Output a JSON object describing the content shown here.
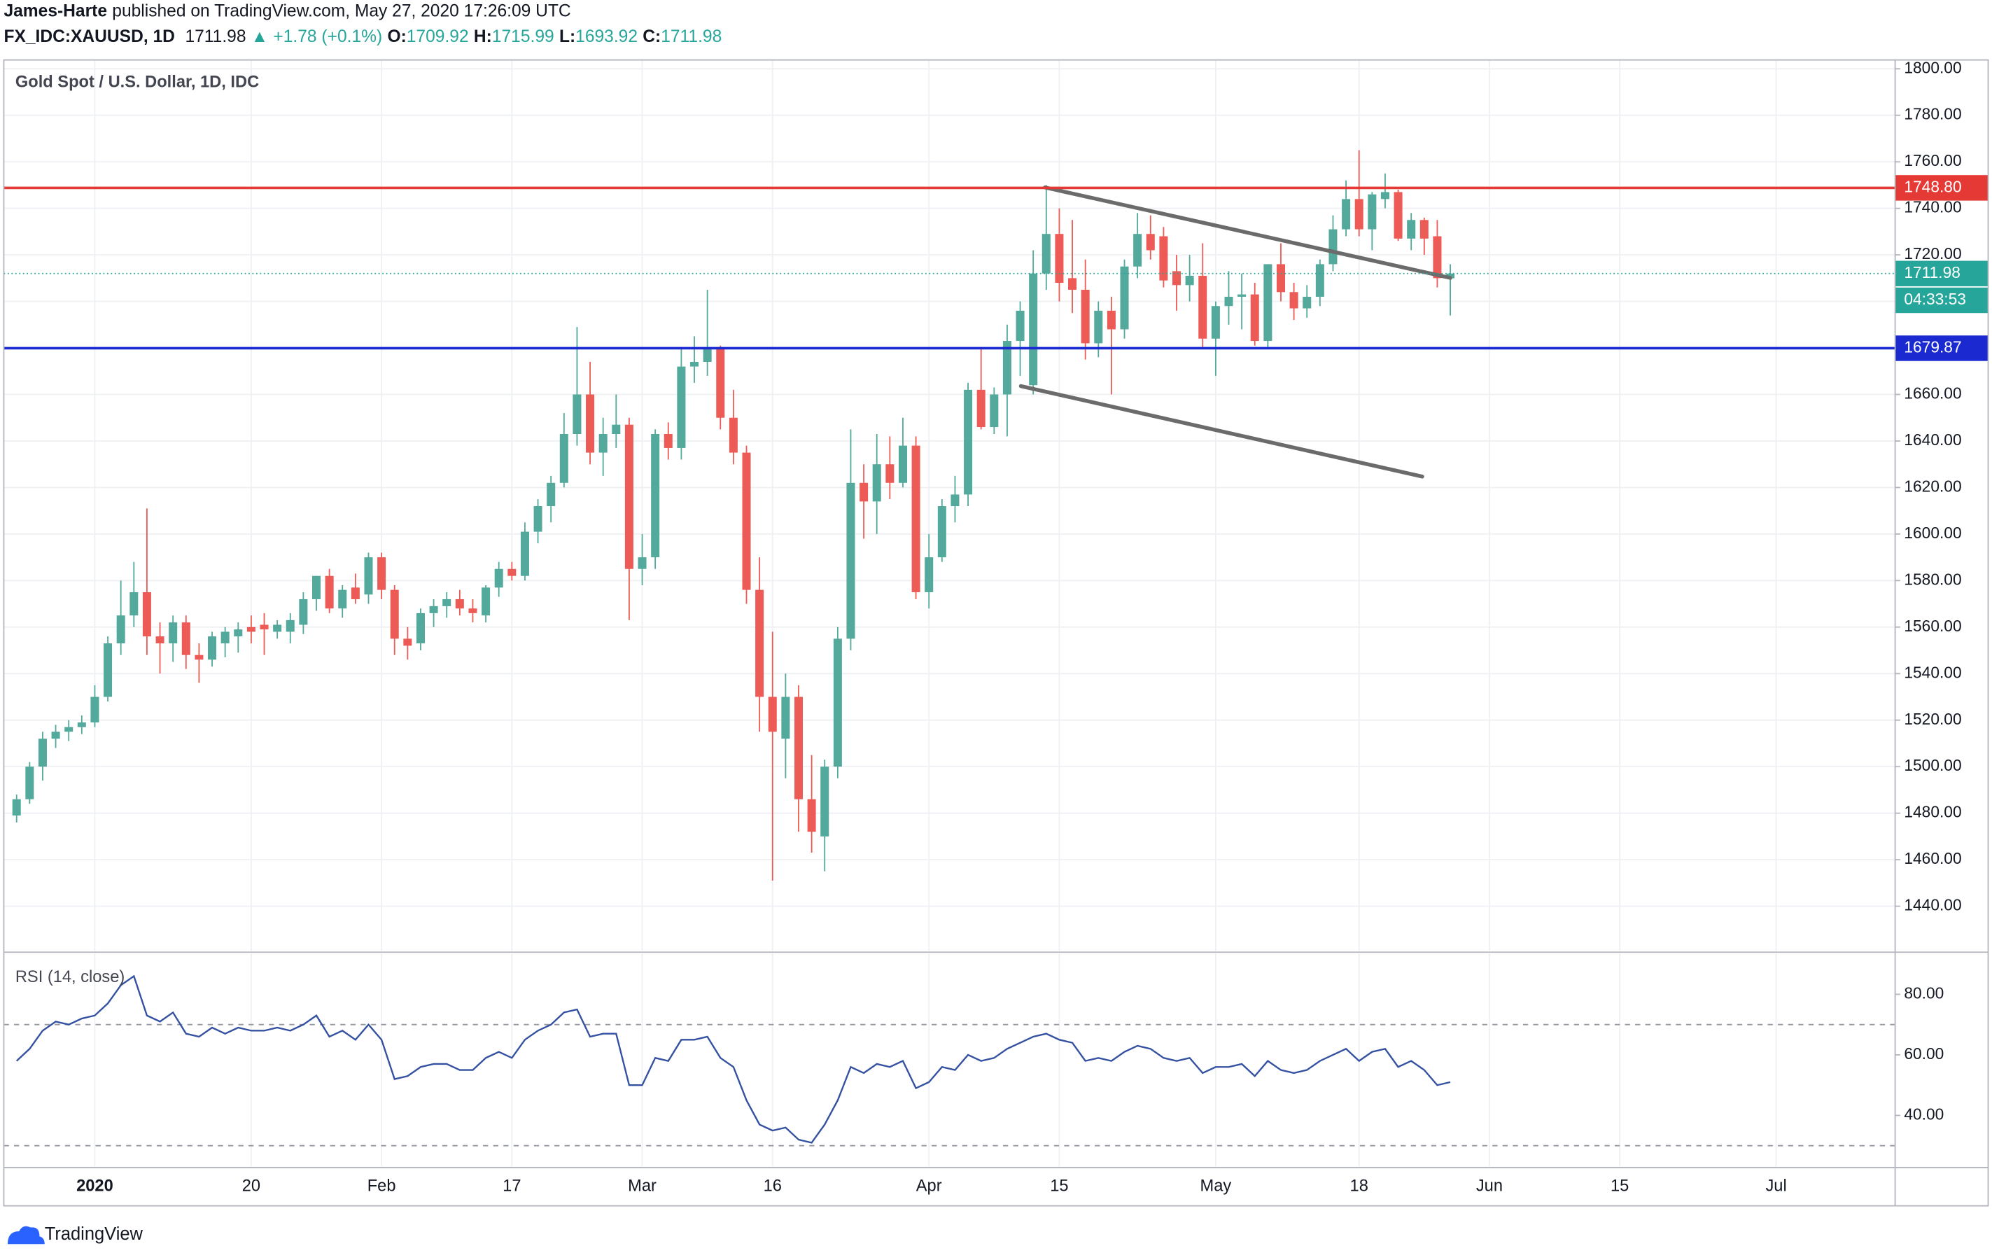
{
  "header": {
    "author": "James-Harte",
    "published": "published on TradingView.com, May 27, 2020 17:26:09 UTC",
    "symbol": "FX_IDC:XAUUSD, 1D",
    "price": "1711.98",
    "direction": "▲",
    "change": "+1.78 (+0.1%)",
    "o_label": "O:",
    "o": "1709.92",
    "h_label": "H:",
    "h": "1715.99",
    "l_label": "L:",
    "l": "1693.92",
    "c_label": "C:",
    "c": "1711.98"
  },
  "chart_data": [
    {
      "type": "candlestick",
      "title": "Gold Spot / U.S. Dollar, 1D, IDC",
      "up_color": "#53a99b",
      "down_color": "#ec5b56",
      "grid": true,
      "candles": [
        [
          1479,
          1488,
          1476,
          1486
        ],
        [
          1486,
          1502,
          1484,
          1500
        ],
        [
          1500,
          1515,
          1494,
          1512
        ],
        [
          1512,
          1518,
          1508,
          1515
        ],
        [
          1515,
          1520,
          1511,
          1517
        ],
        [
          1517,
          1522,
          1514,
          1519
        ],
        [
          1519,
          1535,
          1517,
          1530
        ],
        [
          1530,
          1556,
          1528,
          1553
        ],
        [
          1553,
          1580,
          1548,
          1565
        ],
        [
          1565,
          1588,
          1560,
          1575
        ],
        [
          1575,
          1611,
          1548,
          1556
        ],
        [
          1556,
          1562,
          1540,
          1553
        ],
        [
          1553,
          1565,
          1545,
          1562
        ],
        [
          1562,
          1565,
          1542,
          1548
        ],
        [
          1548,
          1553,
          1536,
          1546
        ],
        [
          1546,
          1558,
          1543,
          1556
        ],
        [
          1553,
          1560,
          1547,
          1558
        ],
        [
          1556,
          1562,
          1549,
          1559
        ],
        [
          1560,
          1565,
          1553,
          1558
        ],
        [
          1561,
          1566,
          1548,
          1559
        ],
        [
          1558,
          1563,
          1555,
          1561
        ],
        [
          1558,
          1566,
          1553,
          1563
        ],
        [
          1561,
          1575,
          1557,
          1572
        ],
        [
          1572,
          1582,
          1567,
          1582
        ],
        [
          1582,
          1585,
          1566,
          1568
        ],
        [
          1568,
          1578,
          1564,
          1576
        ],
        [
          1577,
          1583,
          1570,
          1572
        ],
        [
          1574,
          1592,
          1570,
          1590
        ],
        [
          1590,
          1592,
          1572,
          1576
        ],
        [
          1576,
          1578,
          1548,
          1555
        ],
        [
          1555,
          1560,
          1546,
          1552
        ],
        [
          1553,
          1568,
          1550,
          1566
        ],
        [
          1566,
          1572,
          1560,
          1569
        ],
        [
          1569,
          1575,
          1564,
          1572
        ],
        [
          1572,
          1576,
          1565,
          1568
        ],
        [
          1568,
          1572,
          1562,
          1566
        ],
        [
          1565,
          1578,
          1562,
          1577
        ],
        [
          1577,
          1588,
          1573,
          1585
        ],
        [
          1585,
          1588,
          1580,
          1582
        ],
        [
          1582,
          1605,
          1580,
          1601
        ],
        [
          1601,
          1615,
          1596,
          1612
        ],
        [
          1612,
          1625,
          1605,
          1622
        ],
        [
          1622,
          1652,
          1620,
          1643
        ],
        [
          1643,
          1689,
          1638,
          1660
        ],
        [
          1660,
          1674,
          1630,
          1635
        ],
        [
          1635,
          1650,
          1625,
          1643
        ],
        [
          1643,
          1660,
          1637,
          1647
        ],
        [
          1647,
          1650,
          1563,
          1585
        ],
        [
          1585,
          1600,
          1578,
          1590
        ],
        [
          1590,
          1645,
          1585,
          1643
        ],
        [
          1643,
          1648,
          1632,
          1637
        ],
        [
          1637,
          1680,
          1632,
          1672
        ],
        [
          1672,
          1685,
          1665,
          1674
        ],
        [
          1674,
          1705,
          1668,
          1680
        ],
        [
          1680,
          1681,
          1645,
          1650
        ],
        [
          1650,
          1662,
          1630,
          1635
        ],
        [
          1635,
          1638,
          1570,
          1576
        ],
        [
          1576,
          1590,
          1515,
          1530
        ],
        [
          1530,
          1558,
          1451,
          1515
        ],
        [
          1512,
          1540,
          1495,
          1530
        ],
        [
          1530,
          1535,
          1472,
          1486
        ],
        [
          1486,
          1505,
          1463,
          1472
        ],
        [
          1470,
          1503,
          1455,
          1500
        ],
        [
          1500,
          1560,
          1495,
          1555
        ],
        [
          1555,
          1645,
          1550,
          1622
        ],
        [
          1622,
          1630,
          1598,
          1614
        ],
        [
          1614,
          1643,
          1600,
          1630
        ],
        [
          1630,
          1642,
          1615,
          1622
        ],
        [
          1622,
          1650,
          1620,
          1638
        ],
        [
          1638,
          1642,
          1572,
          1575
        ],
        [
          1575,
          1600,
          1568,
          1590
        ],
        [
          1590,
          1615,
          1588,
          1612
        ],
        [
          1612,
          1625,
          1605,
          1617
        ],
        [
          1617,
          1665,
          1612,
          1662
        ],
        [
          1662,
          1680,
          1645,
          1646
        ],
        [
          1646,
          1663,
          1643,
          1660
        ],
        [
          1660,
          1690,
          1642,
          1683
        ],
        [
          1683,
          1700,
          1668,
          1696
        ],
        [
          1664,
          1722,
          1660,
          1712
        ],
        [
          1712,
          1750,
          1705,
          1729
        ],
        [
          1729,
          1740,
          1700,
          1708
        ],
        [
          1710,
          1735,
          1695,
          1705
        ],
        [
          1705,
          1718,
          1675,
          1682
        ],
        [
          1682,
          1700,
          1676,
          1696
        ],
        [
          1696,
          1702,
          1660,
          1688
        ],
        [
          1688,
          1718,
          1684,
          1715
        ],
        [
          1715,
          1738,
          1710,
          1729
        ],
        [
          1729,
          1737,
          1718,
          1722
        ],
        [
          1728,
          1732,
          1706,
          1709
        ],
        [
          1713,
          1720,
          1696,
          1707
        ],
        [
          1707,
          1720,
          1700,
          1711
        ],
        [
          1711,
          1725,
          1680,
          1684
        ],
        [
          1684,
          1700,
          1668,
          1698
        ],
        [
          1698,
          1713,
          1690,
          1702
        ],
        [
          1702,
          1712,
          1688,
          1703
        ],
        [
          1703,
          1708,
          1681,
          1683
        ],
        [
          1683,
          1716,
          1680,
          1716
        ],
        [
          1716,
          1725,
          1700,
          1704
        ],
        [
          1704,
          1708,
          1692,
          1697
        ],
        [
          1697,
          1707,
          1693,
          1702
        ],
        [
          1702,
          1718,
          1698,
          1716
        ],
        [
          1716,
          1737,
          1713,
          1731
        ],
        [
          1731,
          1752,
          1728,
          1744
        ],
        [
          1744,
          1765,
          1728,
          1731
        ],
        [
          1731,
          1747,
          1722,
          1746
        ],
        [
          1744,
          1755,
          1740,
          1747
        ],
        [
          1747,
          1748,
          1726,
          1727
        ],
        [
          1727,
          1738,
          1722,
          1735
        ],
        [
          1735,
          1736,
          1720,
          1727
        ],
        [
          1728,
          1735,
          1706,
          1710
        ],
        [
          1709.92,
          1715.99,
          1693.92,
          1711.98
        ]
      ],
      "xlim": [
        -0.98,
        144.13
      ],
      "xticks": [
        {
          "value": 6,
          "label": "2020"
        },
        {
          "value": 18,
          "label": "20"
        },
        {
          "value": 28,
          "label": "Feb"
        },
        {
          "value": 38,
          "label": "17"
        },
        {
          "value": 48,
          "label": "Mar"
        },
        {
          "value": 58,
          "label": "16"
        },
        {
          "value": 70,
          "label": "Apr"
        },
        {
          "value": 80,
          "label": "15"
        },
        {
          "value": 92,
          "label": "May"
        },
        {
          "value": 103,
          "label": "18"
        },
        {
          "value": 113,
          "label": "Jun"
        },
        {
          "value": 123,
          "label": "15"
        },
        {
          "value": 135,
          "label": "Jul"
        }
      ],
      "ylim": [
        1420.8,
        1803.8
      ],
      "yticks": [
        {
          "value": 1440,
          "label": "1440.00"
        },
        {
          "value": 1460,
          "label": "1460.00"
        },
        {
          "value": 1480,
          "label": "1480.00"
        },
        {
          "value": 1500,
          "label": "1500.00"
        },
        {
          "value": 1520,
          "label": "1520.00"
        },
        {
          "value": 1540,
          "label": "1540.00"
        },
        {
          "value": 1560,
          "label": "1560.00"
        },
        {
          "value": 1580,
          "label": "1580.00"
        },
        {
          "value": 1600,
          "label": "1600.00"
        },
        {
          "value": 1620,
          "label": "1620.00"
        },
        {
          "value": 1640,
          "label": "1640.00"
        },
        {
          "value": 1660,
          "label": "1660.00"
        },
        {
          "value": 1680,
          "label": "1680.00"
        },
        {
          "value": 1700,
          "label": "1700.00"
        },
        {
          "value": 1720,
          "label": "1720.00"
        },
        {
          "value": 1740,
          "label": "1740.00"
        },
        {
          "value": 1760,
          "label": "1760.00"
        },
        {
          "value": 1780,
          "label": "1780.00"
        },
        {
          "value": 1800,
          "label": "1800.00"
        }
      ],
      "hlines": [
        {
          "value": 1748.8,
          "label": "1748.80",
          "color": "#e53935"
        },
        {
          "value": 1679.87,
          "label": "1679.87",
          "color": "#1a2ad0"
        }
      ],
      "last_price": {
        "value": 1711.98,
        "label": "1711.98",
        "color": "#26a69a"
      },
      "countdown": "04:33:53",
      "trendlines": [
        {
          "x": [
            78.9,
            110
          ],
          "y": [
            1749,
            1710.1
          ],
          "color": "#6b6b6b"
        },
        {
          "x": [
            77.05,
            107.85
          ],
          "y": [
            1663.6,
            1624.7
          ],
          "color": "#6b6b6b"
        }
      ]
    },
    {
      "type": "line",
      "title": "RSI (14, close)",
      "color": "#3451a1",
      "values": [
        58,
        62,
        68,
        71,
        70,
        72,
        73,
        77,
        83,
        86,
        73,
        71,
        74,
        67,
        66,
        69,
        67,
        69,
        68,
        68,
        69,
        68,
        70,
        73,
        66,
        68,
        65,
        70,
        65,
        52,
        53,
        56,
        57,
        57,
        55,
        55,
        59,
        61,
        59,
        65,
        68,
        70,
        74,
        75,
        66,
        67,
        67,
        50,
        50,
        59,
        58,
        65,
        65,
        66,
        59,
        56,
        45,
        37,
        35,
        36,
        32,
        31,
        37,
        45,
        56,
        54,
        57,
        56,
        58,
        49,
        51,
        56,
        55,
        60,
        58,
        59,
        62,
        64,
        66,
        67,
        65,
        64,
        58,
        59,
        58,
        61,
        63,
        62,
        59,
        58,
        59,
        54,
        56,
        56,
        57,
        53,
        58,
        55,
        54,
        55,
        58,
        60,
        62,
        58,
        61,
        62,
        56,
        58,
        55,
        50,
        51
      ],
      "ylim": [
        23.2,
        93.5
      ],
      "yticks": [
        {
          "value": 40,
          "label": "40.00"
        },
        {
          "value": 60,
          "label": "60.00"
        },
        {
          "value": 80,
          "label": "80.00"
        }
      ],
      "bands": [
        30,
        70
      ]
    }
  ],
  "footer": {
    "brand": "TradingView"
  }
}
